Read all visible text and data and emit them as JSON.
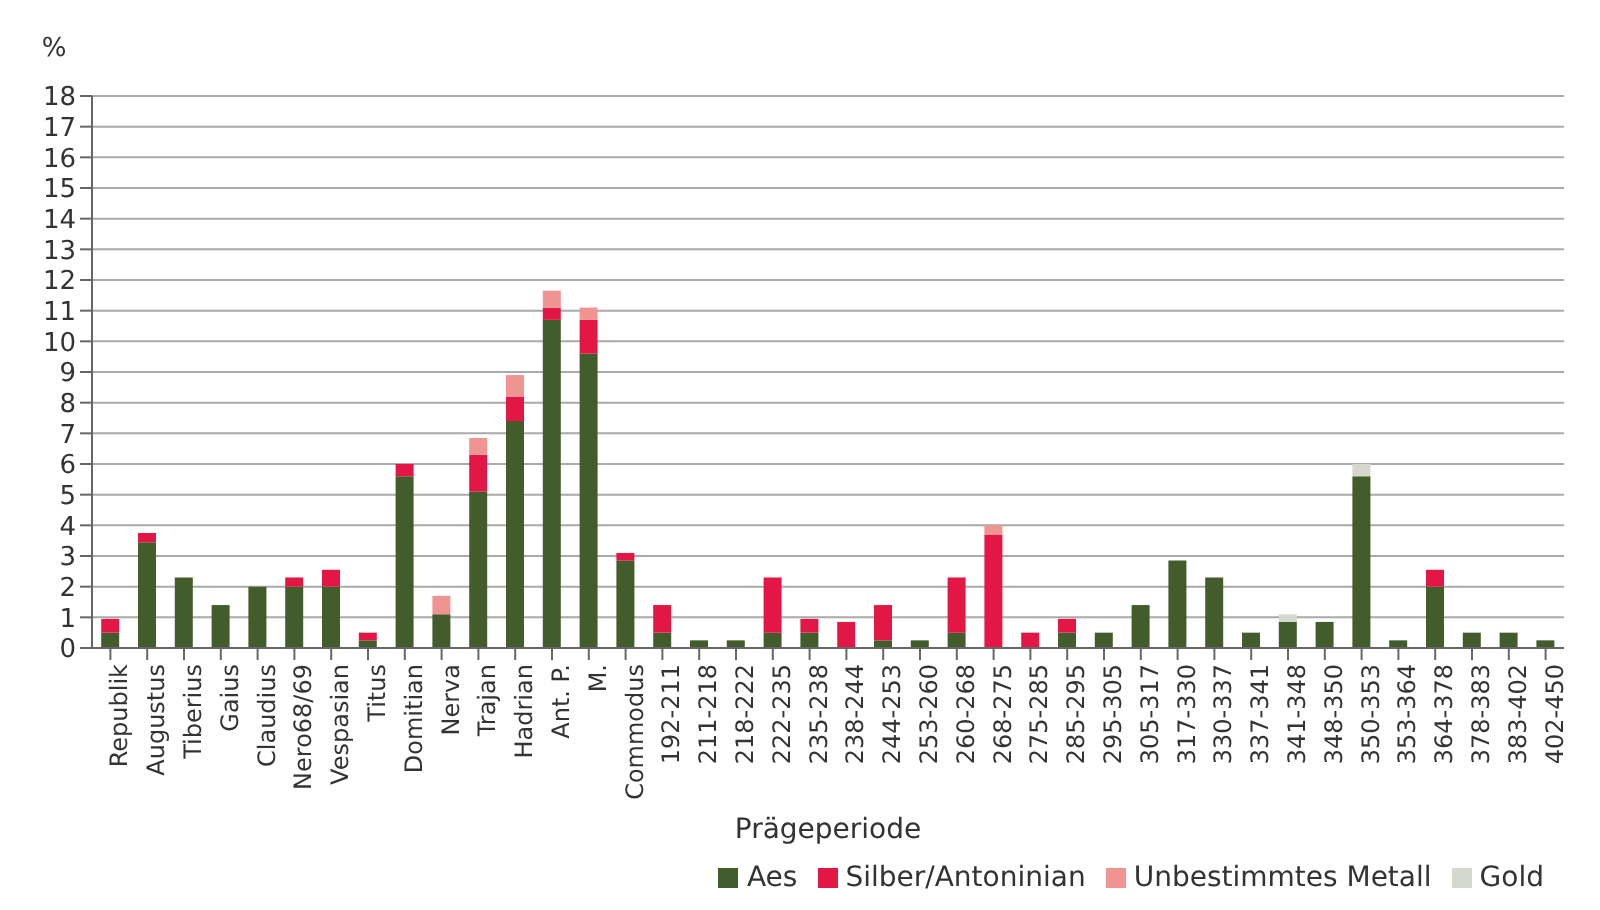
{
  "chart_data": {
    "type": "bar",
    "stacked": true,
    "xlabel": "Prägeperiode",
    "ylabel": "%",
    "categories": [
      "Republik",
      "Augustus",
      "Tiberius",
      "Gaius",
      "Claudius",
      "Nero68/69",
      "Vespasian",
      "Titus",
      "Domitian",
      "Nerva",
      "Trajan",
      "Hadrian",
      "Ant. P.",
      "M.",
      "Commodus",
      "192-211",
      "211-218",
      "218-222",
      "222-235",
      "235-238",
      "238-244",
      "244-253",
      "253-260",
      "260-268",
      "268-275",
      "275-285",
      "285-295",
      "295-305",
      "305-317",
      "317-330",
      "330-337",
      "337-341",
      "341-348",
      "348-350",
      "350-353",
      "353-364",
      "364-378",
      "378-383",
      "383-402",
      "402-450"
    ],
    "series": [
      {
        "name": "Aes",
        "color": "#435c2b",
        "values": [
          0.5,
          3.45,
          2.3,
          1.4,
          2.0,
          2.0,
          2.0,
          0.25,
          5.6,
          1.1,
          5.1,
          7.4,
          10.7,
          9.6,
          2.85,
          0.5,
          0.25,
          0.25,
          0.5,
          0.5,
          0,
          0.25,
          0.25,
          0.5,
          0,
          0,
          0.5,
          0.5,
          1.4,
          2.85,
          2.3,
          0.5,
          0.85,
          0.85,
          5.6,
          0.25,
          2.0,
          0.5,
          0.5,
          0.25
        ]
      },
      {
        "name": "Silber/Antoninian",
        "color": "#e31745",
        "values": [
          0.45,
          0.3,
          0,
          0,
          0,
          0.3,
          0.55,
          0.25,
          0.4,
          0,
          1.2,
          0.8,
          0.4,
          1.1,
          0.25,
          0.9,
          0,
          0,
          1.8,
          0.45,
          0.85,
          1.15,
          0,
          1.8,
          3.7,
          0.5,
          0.45,
          0,
          0,
          0,
          0,
          0,
          0,
          0,
          0,
          0,
          0.55,
          0,
          0,
          0
        ]
      },
      {
        "name": "Unbestimmtes Metall",
        "color": "#ef9490",
        "values": [
          0,
          0,
          0,
          0,
          0,
          0,
          0,
          0,
          0,
          0.6,
          0.55,
          0.7,
          0.55,
          0.4,
          0,
          0,
          0,
          0,
          0,
          0,
          0,
          0,
          0,
          0,
          0.3,
          0,
          0,
          0,
          0,
          0,
          0,
          0,
          0,
          0,
          0,
          0,
          0,
          0,
          0,
          0
        ]
      },
      {
        "name": "Gold",
        "color": "#d5d8cc",
        "values": [
          0,
          0,
          0,
          0,
          0,
          0,
          0,
          0,
          0,
          0,
          0,
          0,
          0,
          0,
          0,
          0,
          0,
          0,
          0,
          0,
          0,
          0,
          0,
          0,
          0,
          0,
          0,
          0,
          0,
          0,
          0,
          0,
          0.25,
          0,
          0.4,
          0,
          0,
          0,
          0,
          0
        ]
      }
    ],
    "ylim": [
      0,
      18
    ],
    "yticks": [
      0,
      1,
      2,
      3,
      4,
      5,
      6,
      7,
      8,
      9,
      10,
      11,
      12,
      13,
      14,
      15,
      16,
      17,
      18
    ],
    "grid": "y",
    "legend": "bottom right"
  }
}
